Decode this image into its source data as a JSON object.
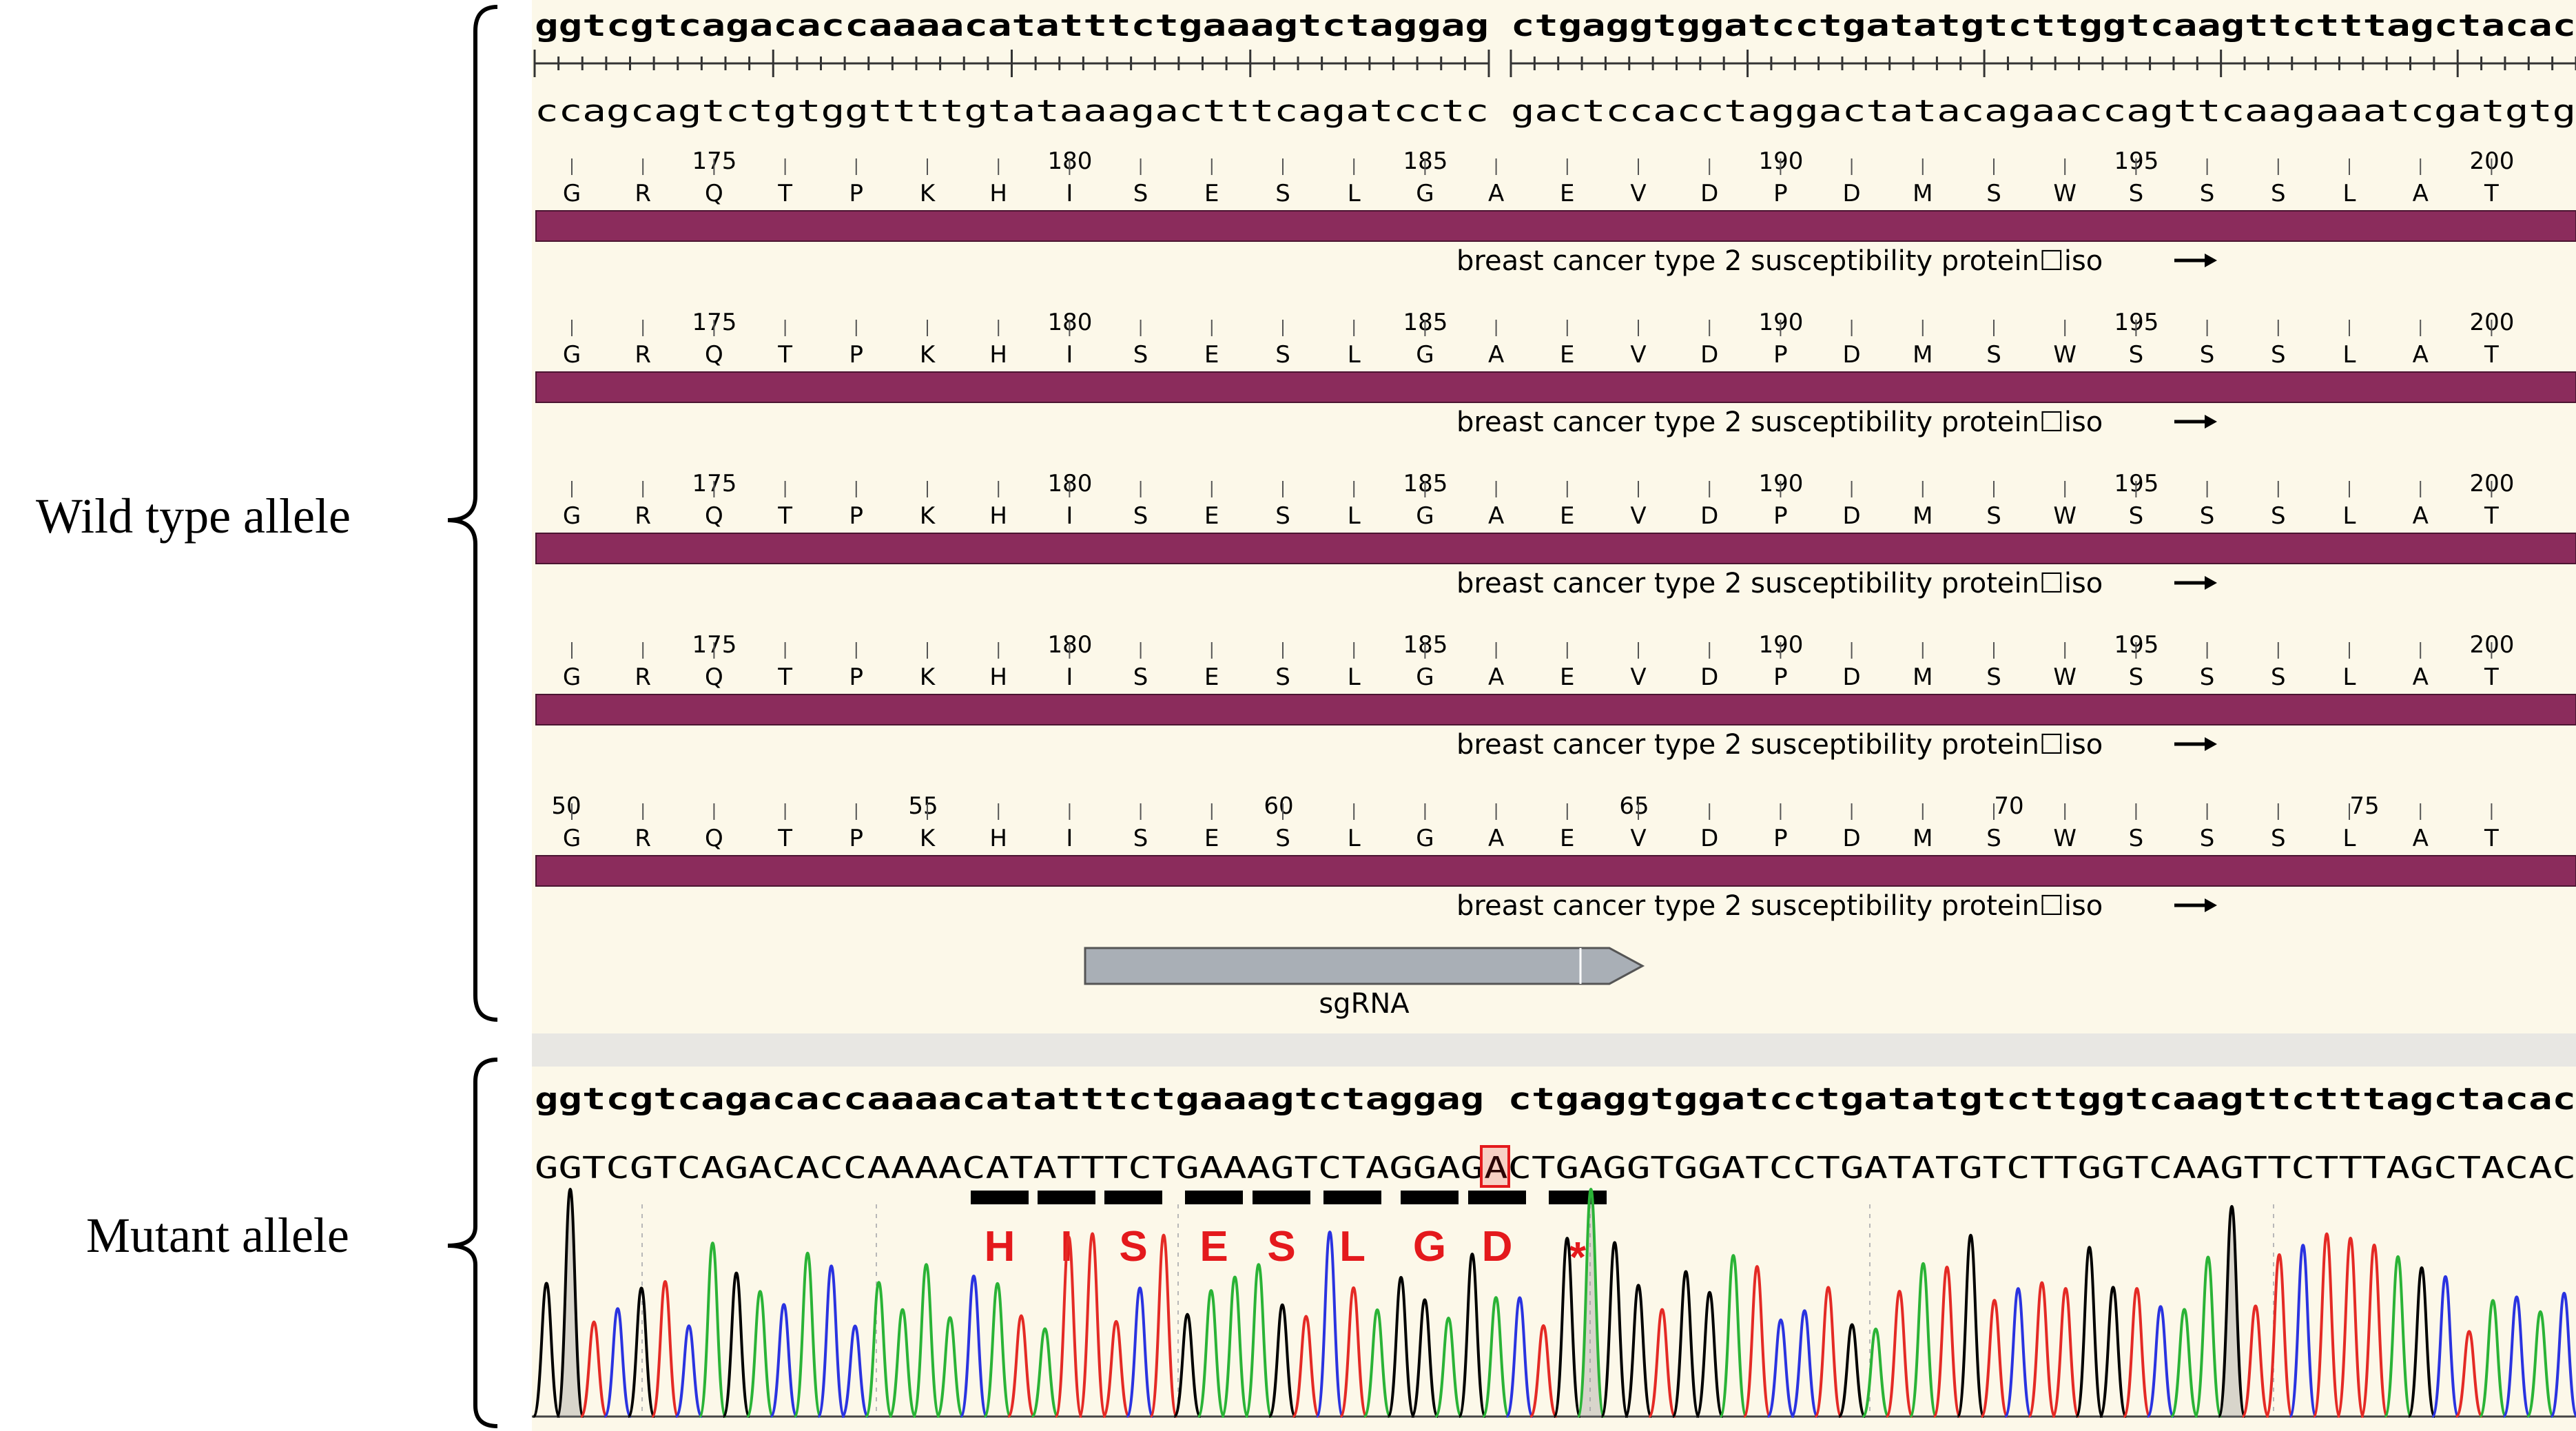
{
  "labels": {
    "wild_type": "Wild type allele",
    "mutant": "Mutant allele"
  },
  "wild_type": {
    "top_strand_1": "ggtcgtcagacaccaaaacatatttctgaaagtctaggag",
    "top_strand_2": "ctgaggtggatcctgatatgtcttggtcaagttctttagctacac",
    "bottom_strand_1": "ccagcagtctgtggttttgtataaagactttcagatcctc",
    "bottom_strand_2": "gactccacctaggactatacagaaccagttcaagaaatcgatgtg",
    "amino_acids": [
      "G",
      "R",
      "Q",
      "T",
      "P",
      "K",
      "H",
      "I",
      "S",
      "E",
      "S",
      "L",
      "G",
      "A",
      "E",
      "V",
      "D",
      "P",
      "D",
      "M",
      "S",
      "W",
      "S",
      "S",
      "S",
      "L",
      "A",
      "T"
    ],
    "features": [
      {
        "numbers": [
          "175",
          "180",
          "185",
          "190",
          "195",
          "200"
        ],
        "label": "breast cancer type 2 susceptibility protein☐iso"
      },
      {
        "numbers": [
          "175",
          "180",
          "185",
          "190",
          "195",
          "200"
        ],
        "label": "breast cancer type 2 susceptibility protein☐iso"
      },
      {
        "numbers": [
          "175",
          "180",
          "185",
          "190",
          "195",
          "200"
        ],
        "label": "breast cancer type 2 susceptibility protein☐iso"
      },
      {
        "numbers": [
          "175",
          "180",
          "185",
          "190",
          "195",
          "200"
        ],
        "label": "breast cancer type 2 susceptibility protein☐iso"
      },
      {
        "numbers": [
          "50",
          "55",
          "60",
          "65",
          "70",
          "75"
        ],
        "label": "breast cancer type 2 susceptibility protein☐iso"
      }
    ],
    "sgrna_label": "sgRNA"
  },
  "mutant": {
    "reference": "ggtcgtcagacaccaaaacatatttctgaaagtctaggag ctgaggtggatcctgatatgtcttggtcaagttctttagctacac",
    "read_before": "GGTCGTCAGACACCAAAACATATTTCTGAAAGTCTAGGAG",
    "inserted_base": "A",
    "read_after": "CTGAGGTGGATCCTGATATGTCTTGGTCAAGTTCTTTAGCTACAC",
    "translation": [
      "H",
      "I",
      "S",
      "E",
      "S",
      "L",
      "G",
      "D",
      "*"
    ]
  },
  "colors": {
    "panel_bg": "#fcf8e9",
    "feature_bar": "#8b2c5c",
    "sgrna": "#a9afb6",
    "mutant_text": "#e4191c",
    "trace_A": "#2ab336",
    "trace_C": "#2a33e0",
    "trace_G": "#000000",
    "trace_T": "#e42a25"
  }
}
